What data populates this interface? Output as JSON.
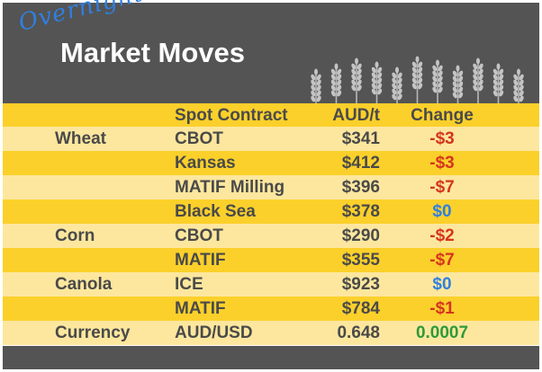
{
  "header": {
    "overnight": "Overnight",
    "title": "Market Moves"
  },
  "columns": {
    "contract": "Spot Contract",
    "price": "AUD/t",
    "change": "Change"
  },
  "rows": [
    {
      "grain": "Wheat",
      "contract": "CBOT",
      "price": "$341",
      "change": "-$3",
      "dir": "neg"
    },
    {
      "grain": "",
      "contract": "Kansas",
      "price": "$412",
      "change": "-$3",
      "dir": "neg"
    },
    {
      "grain": "",
      "contract": "MATIF Milling",
      "price": "$396",
      "change": "-$7",
      "dir": "neg"
    },
    {
      "grain": "",
      "contract": "Black Sea",
      "price": "$378",
      "change": "$0",
      "dir": "zero"
    },
    {
      "grain": "Corn",
      "contract": "CBOT",
      "price": "$290",
      "change": "-$2",
      "dir": "neg"
    },
    {
      "grain": "",
      "contract": "MATIF",
      "price": "$355",
      "change": "-$7",
      "dir": "neg"
    },
    {
      "grain": "Canola",
      "contract": "ICE",
      "price": "$923",
      "change": "$0",
      "dir": "zero"
    },
    {
      "grain": "",
      "contract": "MATIF",
      "price": "$784",
      "change": "-$1",
      "dir": "neg"
    },
    {
      "grain": "Currency",
      "contract": "AUD/USD",
      "price": "0.648",
      "change": "0.0007",
      "dir": "pos"
    }
  ],
  "colors": {
    "header_bg": "#545454",
    "row_dark": "#fbd02b",
    "row_light": "#fde79e",
    "negative": "#d6341f",
    "zero": "#2f7fe0",
    "positive": "#2e9a3a"
  },
  "decoration": {
    "icon": "wheat-stalks-icon"
  }
}
